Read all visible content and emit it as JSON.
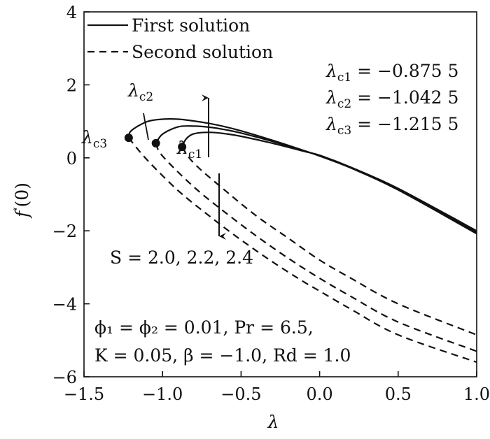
{
  "chart_data": {
    "type": "line",
    "title": "",
    "xlabel": "λ",
    "ylabel": "f''(0)",
    "xlim": [
      -1.5,
      1.0
    ],
    "ylim": [
      -6,
      4
    ],
    "grid": false,
    "legend_position": "top-left",
    "x_ticks": [
      -1.5,
      -1.0,
      -0.5,
      0.0,
      0.5,
      1.0
    ],
    "x_tick_labels": [
      "−1.5",
      "−1.0",
      "−0.5",
      "0.0",
      "0.5",
      "1.0"
    ],
    "y_ticks": [
      -6,
      -4,
      -2,
      0,
      2,
      4
    ],
    "y_tick_labels": [
      "−6",
      "−4",
      "−2",
      "0",
      "2",
      "4"
    ],
    "legend": [
      {
        "name": "First solution",
        "style": "solid"
      },
      {
        "name": "Second solution",
        "style": "dashed"
      }
    ],
    "series": [
      {
        "group": "first",
        "style": "solid",
        "x": [
          -0.8755,
          -0.85,
          -0.8,
          -0.7,
          -0.6,
          -0.5,
          -0.3,
          -0.1,
          0.0,
          0.2,
          0.5,
          1.0
        ],
        "y": [
          0.3,
          0.52,
          0.66,
          0.7,
          0.66,
          0.59,
          0.4,
          0.18,
          0.07,
          -0.26,
          -0.84,
          -2.0
        ]
      },
      {
        "group": "first",
        "style": "solid",
        "x": [
          -1.0425,
          -1.0,
          -0.9,
          -0.8,
          -0.7,
          -0.6,
          -0.5,
          -0.3,
          -0.1,
          0.0,
          0.2,
          0.5,
          1.0
        ],
        "y": [
          0.4,
          0.65,
          0.85,
          0.87,
          0.84,
          0.77,
          0.68,
          0.45,
          0.19,
          0.06,
          -0.27,
          -0.86,
          -2.04
        ]
      },
      {
        "group": "first",
        "style": "solid",
        "x": [
          -1.2155,
          -1.2,
          -1.1,
          -1.0,
          -0.9,
          -0.8,
          -0.7,
          -0.6,
          -0.5,
          -0.3,
          -0.1,
          0.0,
          0.2,
          0.5,
          1.0
        ],
        "y": [
          0.55,
          0.74,
          0.99,
          1.06,
          1.06,
          1.01,
          0.94,
          0.85,
          0.74,
          0.48,
          0.2,
          0.05,
          -0.28,
          -0.88,
          -2.08
        ]
      },
      {
        "group": "second",
        "style": "dashed",
        "x": [
          -0.8755,
          -0.8,
          -0.6,
          -0.4,
          -0.2,
          0.0,
          0.2,
          0.5,
          1.0
        ],
        "y": [
          0.3,
          -0.15,
          -0.9,
          -1.6,
          -2.2,
          -2.8,
          -3.3,
          -4.0,
          -4.85
        ]
      },
      {
        "group": "second",
        "style": "dashed",
        "x": [
          -1.0425,
          -1.0,
          -0.8,
          -0.6,
          -0.4,
          -0.2,
          0.0,
          0.2,
          0.5,
          1.0
        ],
        "y": [
          0.4,
          0.05,
          -0.8,
          -1.5,
          -2.15,
          -2.75,
          -3.3,
          -3.8,
          -4.5,
          -5.3
        ]
      },
      {
        "group": "second",
        "style": "dashed",
        "x": [
          -1.2155,
          -1.1,
          -0.9,
          -0.7,
          -0.5,
          -0.3,
          -0.1,
          0.0,
          0.2,
          0.5,
          1.0
        ],
        "y": [
          0.55,
          -0.05,
          -0.9,
          -1.6,
          -2.25,
          -2.85,
          -3.4,
          -3.65,
          -4.15,
          -4.85,
          -5.6
        ]
      }
    ],
    "critical_points": [
      {
        "label_main": "λ",
        "label_sub": "c1",
        "x": -0.8755,
        "y": 0.3
      },
      {
        "label_main": "λ",
        "label_sub": "c2",
        "x": -1.0425,
        "y": 0.4
      },
      {
        "label_main": "λ",
        "label_sub": "c3",
        "x": -1.2155,
        "y": 0.55
      }
    ],
    "annotations": {
      "critical_values": [
        {
          "label_main": "λ",
          "label_sub": "c1",
          "value": "−0.875 5"
        },
        {
          "label_main": "λ",
          "label_sub": "c2",
          "value": "−1.042 5"
        },
        {
          "label_main": "λ",
          "label_sub": "c3",
          "value": "−1.215 5"
        }
      ],
      "s_label": "S = 2.0, 2.2, 2.4",
      "params_line1": "ϕ₁ = ϕ₂ = 0.01, Pr = 6.5,",
      "params_line2": "K = 0.05, β = −1.0, Rd = 1.0"
    }
  }
}
